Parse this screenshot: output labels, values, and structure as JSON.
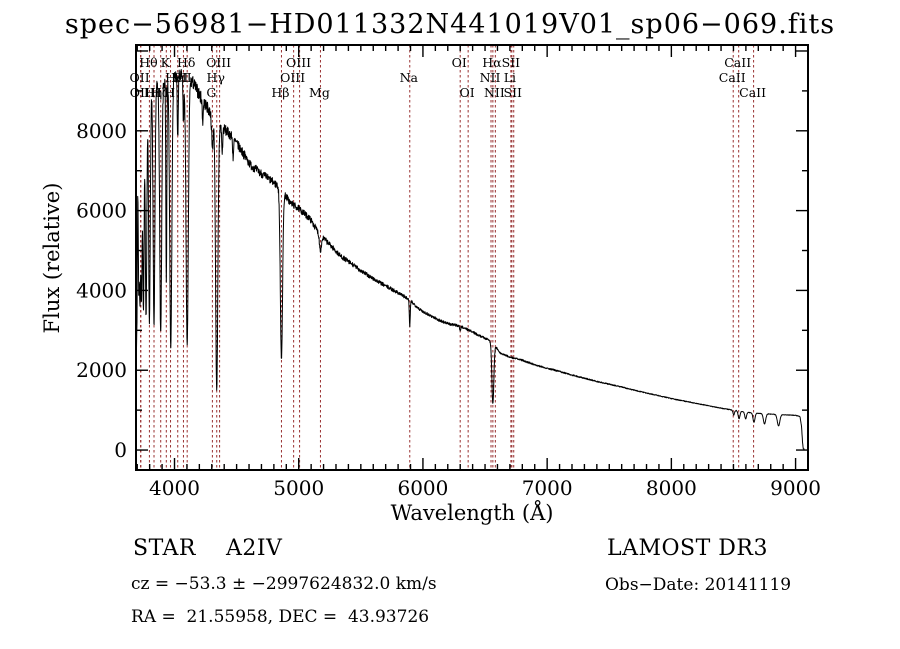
{
  "page": {
    "background": "#ffffff"
  },
  "chart_data": {
    "type": "line",
    "title": "spec−56981−HD011332N441019V01_sp06−069.fits",
    "xlabel": "Wavelength (Å)",
    "ylabel": "Flux (relative)",
    "xlim": [
      3690,
      9100
    ],
    "ylim": [
      -500,
      10150
    ],
    "xticks": [
      4000,
      5000,
      6000,
      7000,
      8000,
      9000
    ],
    "x_minor_step": 100,
    "yticks": [
      0,
      2000,
      4000,
      6000,
      8000
    ],
    "y_tick_labels": [
      "0",
      "2000",
      "4000",
      "6000",
      "8000"
    ],
    "y_minor_step": 1000,
    "y_major_step": 2000,
    "grid": false,
    "legend": "none",
    "curve_color": "#000000",
    "marker_color": "#993030",
    "frame_color": "#000000",
    "spectral_lines": [
      {
        "name": "Hθ",
        "wavelength": 3798,
        "row": 1
      },
      {
        "name": "K",
        "wavelength": 3934,
        "row": 1
      },
      {
        "name": "Hδ",
        "wavelength": 4102,
        "row": 1
      },
      {
        "name": "OIII",
        "wavelength": 4363,
        "row": 1
      },
      {
        "name": "OIII",
        "wavelength": 5007,
        "row": 1
      },
      {
        "name": "OI",
        "wavelength": 6300,
        "row": 1
      },
      {
        "name": "Hα",
        "wavelength": 6563,
        "row": 1
      },
      {
        "name": "SII",
        "wavelength": 6716,
        "row": 1
      },
      {
        "name": "CaII",
        "wavelength": 8542,
        "row": 1
      },
      {
        "name": "OII",
        "wavelength": 3727,
        "row": 2
      },
      {
        "name": "HeI",
        "wavelength": 4026,
        "row": 2
      },
      {
        "name": "SII",
        "wavelength": 4072,
        "row": 2
      },
      {
        "name": "Hγ",
        "wavelength": 4340,
        "row": 2
      },
      {
        "name": "OIII",
        "wavelength": 4959,
        "row": 2
      },
      {
        "name": "Na",
        "wavelength": 5894,
        "row": 2
      },
      {
        "name": "NII",
        "wavelength": 6548,
        "row": 2
      },
      {
        "name": "Li",
        "wavelength": 6708,
        "row": 2
      },
      {
        "name": "CaII",
        "wavelength": 8498,
        "row": 2
      },
      {
        "name": "OII",
        "wavelength": 3729,
        "row": 3
      },
      {
        "name": "Hη",
        "wavelength": 3835,
        "row": 3
      },
      {
        "name": "Hζ",
        "wavelength": 3889,
        "row": 3
      },
      {
        "name": "H",
        "wavelength": 3968,
        "row": 3
      },
      {
        "name": "G",
        "wavelength": 4305,
        "row": 3
      },
      {
        "name": "Hβ",
        "wavelength": 4861,
        "row": 3
      },
      {
        "name": "Mg",
        "wavelength": 5175,
        "row": 3
      },
      {
        "name": "OI",
        "wavelength": 6364,
        "row": 3
      },
      {
        "name": "NII",
        "wavelength": 6583,
        "row": 3
      },
      {
        "name": "SII",
        "wavelength": 6731,
        "row": 3
      },
      {
        "name": "CaII",
        "wavelength": 8662,
        "row": 3
      }
    ],
    "continuum": [
      [
        3690,
        1800
      ],
      [
        3696,
        5000
      ],
      [
        3704,
        7600
      ],
      [
        3714,
        8400
      ],
      [
        3745,
        8700
      ],
      [
        3790,
        8900
      ],
      [
        3860,
        9100
      ],
      [
        3930,
        9250
      ],
      [
        4010,
        9380
      ],
      [
        4090,
        9350
      ],
      [
        4150,
        9200
      ],
      [
        4210,
        8850
      ],
      [
        4280,
        8500
      ],
      [
        4360,
        8150
      ],
      [
        4450,
        7900
      ],
      [
        4530,
        7550
      ],
      [
        4610,
        7150
      ],
      [
        4690,
        6950
      ],
      [
        4780,
        6750
      ],
      [
        4860,
        6550
      ],
      [
        4930,
        6200
      ],
      [
        5000,
        6050
      ],
      [
        5090,
        5800
      ],
      [
        5170,
        5400
      ],
      [
        5250,
        5150
      ],
      [
        5330,
        4880
      ],
      [
        5410,
        4700
      ],
      [
        5490,
        4520
      ],
      [
        5570,
        4350
      ],
      [
        5650,
        4200
      ],
      [
        5730,
        4060
      ],
      [
        5820,
        3910
      ],
      [
        5900,
        3740
      ],
      [
        5980,
        3510
      ],
      [
        6060,
        3370
      ],
      [
        6140,
        3240
      ],
      [
        6220,
        3150
      ],
      [
        6300,
        3110
      ],
      [
        6380,
        2990
      ],
      [
        6460,
        2860
      ],
      [
        6530,
        2760
      ],
      [
        6563,
        2700
      ],
      [
        6620,
        2430
      ],
      [
        6700,
        2330
      ],
      [
        6800,
        2250
      ],
      [
        6900,
        2140
      ],
      [
        7000,
        2050
      ],
      [
        7100,
        1970
      ],
      [
        7200,
        1880
      ],
      [
        7300,
        1800
      ],
      [
        7400,
        1720
      ],
      [
        7500,
        1650
      ],
      [
        7600,
        1580
      ],
      [
        7700,
        1500
      ],
      [
        7800,
        1430
      ],
      [
        7900,
        1360
      ],
      [
        8000,
        1290
      ],
      [
        8100,
        1230
      ],
      [
        8200,
        1170
      ],
      [
        8300,
        1110
      ],
      [
        8400,
        1050
      ],
      [
        8500,
        1000
      ],
      [
        8600,
        950
      ],
      [
        8700,
        920
      ],
      [
        8800,
        900
      ],
      [
        8900,
        885
      ],
      [
        9000,
        870
      ],
      [
        9035,
        840
      ],
      [
        9048,
        600
      ],
      [
        9056,
        200
      ],
      [
        9062,
        30
      ],
      [
        9072,
        25
      ]
    ],
    "absorption_lines": [
      [
        3697,
        0.45,
        4
      ],
      [
        3712,
        0.48,
        4
      ],
      [
        3722,
        0.52,
        4.5
      ],
      [
        3734,
        0.55,
        5
      ],
      [
        3750,
        0.6,
        5.5
      ],
      [
        3771,
        0.62,
        6
      ],
      [
        3798,
        0.64,
        6.5
      ],
      [
        3835,
        0.66,
        7
      ],
      [
        3889,
        0.68,
        8
      ],
      [
        3934,
        0.55,
        4
      ],
      [
        3970,
        0.72,
        8.5
      ],
      [
        4026,
        0.17,
        4
      ],
      [
        4072,
        0.12,
        4
      ],
      [
        4102,
        0.72,
        9
      ],
      [
        4227,
        0.06,
        4
      ],
      [
        4305,
        0.1,
        6
      ],
      [
        4340,
        0.82,
        9
      ],
      [
        4384,
        0.08,
        4
      ],
      [
        4472,
        0.06,
        4
      ],
      [
        4861,
        0.65,
        9
      ],
      [
        5175,
        0.07,
        8
      ],
      [
        5894,
        0.17,
        4
      ],
      [
        6300,
        0.04,
        4
      ],
      [
        6563,
        0.57,
        8
      ],
      [
        8502,
        0.12,
        6
      ],
      [
        8545,
        0.2,
        7
      ],
      [
        8598,
        0.18,
        7
      ],
      [
        8665,
        0.25,
        8
      ],
      [
        8750,
        0.28,
        9
      ],
      [
        8863,
        0.32,
        10
      ]
    ],
    "noise": {
      "seed": 7,
      "base": 0.007,
      "blue_extra": 0.015,
      "decay": 1600
    },
    "sample_step_angstrom": 2,
    "red_cutoff_angstrom": 9072
  },
  "footer": {
    "class_line": "STAR    A2IV",
    "survey": "LAMOST DR3",
    "cz_line": "cz = −53.3 ± −2997624832.0 km/s",
    "obs_date_line": "Obs−Date: 20141119",
    "radec_line": "RA =  21.55958, DEC =  43.93726"
  }
}
